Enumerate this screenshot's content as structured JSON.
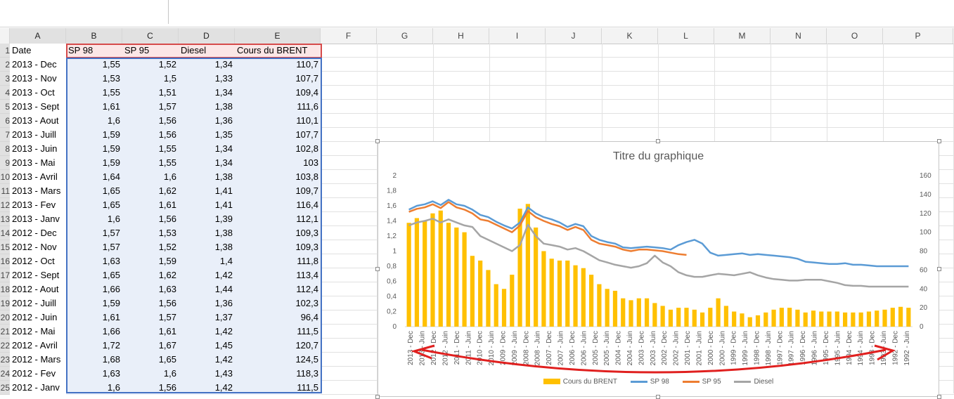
{
  "columns": [
    "A",
    "B",
    "C",
    "D",
    "E",
    "F",
    "G",
    "H",
    "I",
    "J",
    "K",
    "L",
    "M",
    "N",
    "O",
    "P"
  ],
  "headers": {
    "date": "Date",
    "sp98": "SP 98",
    "sp95": "SP 95",
    "diesel": "Diesel",
    "brent": "Cours du BRENT"
  },
  "rows": [
    {
      "n": "2",
      "date": "2013 - Dec",
      "sp98": "1,55",
      "sp95": "1,52",
      "diesel": "1,34",
      "brent": "110,7"
    },
    {
      "n": "3",
      "date": "2013 - Nov",
      "sp98": "1,53",
      "sp95": "1,5",
      "diesel": "1,33",
      "brent": "107,7"
    },
    {
      "n": "4",
      "date": "2013 - Oct",
      "sp98": "1,55",
      "sp95": "1,51",
      "diesel": "1,34",
      "brent": "109,4"
    },
    {
      "n": "5",
      "date": "2013 - Sept",
      "sp98": "1,61",
      "sp95": "1,57",
      "diesel": "1,38",
      "brent": "111,6"
    },
    {
      "n": "6",
      "date": "2013 - Aout",
      "sp98": "1,6",
      "sp95": "1,56",
      "diesel": "1,36",
      "brent": "110,1"
    },
    {
      "n": "7",
      "date": "2013 - Juill",
      "sp98": "1,59",
      "sp95": "1,56",
      "diesel": "1,35",
      "brent": "107,7"
    },
    {
      "n": "8",
      "date": "2013 - Juin",
      "sp98": "1,59",
      "sp95": "1,55",
      "diesel": "1,34",
      "brent": "102,8"
    },
    {
      "n": "9",
      "date": "2013 - Mai",
      "sp98": "1,59",
      "sp95": "1,55",
      "diesel": "1,34",
      "brent": "103"
    },
    {
      "n": "10",
      "date": "2013 - Avril",
      "sp98": "1,64",
      "sp95": "1,6",
      "diesel": "1,38",
      "brent": "103,8"
    },
    {
      "n": "11",
      "date": "2013 - Mars",
      "sp98": "1,65",
      "sp95": "1,62",
      "diesel": "1,41",
      "brent": "109,7"
    },
    {
      "n": "12",
      "date": "2013 - Fev",
      "sp98": "1,65",
      "sp95": "1,61",
      "diesel": "1,41",
      "brent": "116,4"
    },
    {
      "n": "13",
      "date": "2013 - Janv",
      "sp98": "1,6",
      "sp95": "1,56",
      "diesel": "1,39",
      "brent": "112,1"
    },
    {
      "n": "14",
      "date": "2012 - Dec",
      "sp98": "1,57",
      "sp95": "1,53",
      "diesel": "1,38",
      "brent": "109,3"
    },
    {
      "n": "15",
      "date": "2012 - Nov",
      "sp98": "1,57",
      "sp95": "1,52",
      "diesel": "1,38",
      "brent": "109,3"
    },
    {
      "n": "16",
      "date": "2012 - Oct",
      "sp98": "1,63",
      "sp95": "1,59",
      "diesel": "1,4",
      "brent": "111,8"
    },
    {
      "n": "17",
      "date": "2012 - Sept",
      "sp98": "1,65",
      "sp95": "1,62",
      "diesel": "1,42",
      "brent": "113,4"
    },
    {
      "n": "18",
      "date": "2012 - Aout",
      "sp98": "1,66",
      "sp95": "1,63",
      "diesel": "1,44",
      "brent": "112,4"
    },
    {
      "n": "19",
      "date": "2012 - Juill",
      "sp98": "1,59",
      "sp95": "1,56",
      "diesel": "1,36",
      "brent": "102,3"
    },
    {
      "n": "20",
      "date": "2012 - Juin",
      "sp98": "1,61",
      "sp95": "1,57",
      "diesel": "1,37",
      "brent": "96,4"
    },
    {
      "n": "21",
      "date": "2012 - Mai",
      "sp98": "1,66",
      "sp95": "1,61",
      "diesel": "1,42",
      "brent": "111,5"
    },
    {
      "n": "22",
      "date": "2012 - Avril",
      "sp98": "1,72",
      "sp95": "1,67",
      "diesel": "1,45",
      "brent": "120,7"
    },
    {
      "n": "23",
      "date": "2012 - Mars",
      "sp98": "1,68",
      "sp95": "1,65",
      "diesel": "1,42",
      "brent": "124,5"
    },
    {
      "n": "24",
      "date": "2012 - Fev",
      "sp98": "1,63",
      "sp95": "1,6",
      "diesel": "1,43",
      "brent": "118,3"
    },
    {
      "n": "25",
      "date": "2012 - Janv",
      "sp98": "1,6",
      "sp95": "1,56",
      "diesel": "1,42",
      "brent": "111,5"
    }
  ],
  "colors": {
    "sp98": "#5b9bd5",
    "sp95": "#ed7d31",
    "diesel": "#a5a5a5",
    "brent": "#ffc000",
    "annotation": "#e0201f"
  },
  "chart_data": {
    "type": "bar+line",
    "title": "Titre du graphique",
    "left_axis": {
      "ylim": [
        0,
        2
      ],
      "ticks": [
        "0",
        "0,2",
        "0,4",
        "0,6",
        "0,8",
        "1",
        "1,2",
        "1,4",
        "1,6",
        "1,8",
        "2"
      ]
    },
    "right_axis": {
      "ylim": [
        0,
        160
      ],
      "ticks": [
        "0",
        "20",
        "40",
        "60",
        "80",
        "100",
        "120",
        "140",
        "160"
      ]
    },
    "x_tick_labels": [
      "2013 - Dec",
      "2013 - Juin",
      "2012 - Dec",
      "2012 - Juin",
      "2011 - Dec",
      "2011 - Juin",
      "2010 - Dec",
      "2010 - Juin",
      "2009 - Dec",
      "2009 - Juin",
      "2008 - Dec",
      "2008 - Juin",
      "2007 - Dec",
      "2007 - Juin",
      "2006 - Dec",
      "2006 - Juin",
      "2005 - Dec",
      "2005 - Juin",
      "2004 - Dec",
      "2004 - Juin",
      "2003 - Dec",
      "2003 - Juin",
      "2002 - Dec",
      "2002 - Juin",
      "2001 - Dec",
      "2001 - Juin",
      "2000 - Dec",
      "2000 - Juin",
      "1999 - Dec",
      "1999 - Juin",
      "1998 - Dec",
      "1998 - Juin",
      "1997 - Dec",
      "1997 - Juin",
      "1996 - Dec",
      "1996 - Juin",
      "1995 - Dec",
      "1995 - Juin",
      "1994 - Dec",
      "1994 - Juin",
      "1993 - Dec",
      "1993 - Juin",
      "1992 - Dec",
      "1992 - Juin"
    ],
    "legend": [
      "Cours du BRENT",
      "SP 98",
      "SP 95",
      "Diesel"
    ],
    "series": [
      {
        "name": "Cours du BRENT",
        "axis": "right",
        "kind": "bar",
        "values": [
          110,
          115,
          112,
          120,
          123,
          110,
          105,
          100,
          75,
          70,
          60,
          45,
          40,
          55,
          125,
          130,
          105,
          80,
          72,
          70,
          70,
          65,
          62,
          55,
          45,
          40,
          38,
          30,
          28,
          30,
          30,
          25,
          22,
          18,
          20,
          20,
          18,
          15,
          20,
          30,
          22,
          16,
          14,
          10,
          12,
          15,
          18,
          20,
          20,
          18,
          15,
          17,
          16,
          16,
          16,
          15,
          15,
          15,
          16,
          17,
          18,
          20,
          21,
          20
        ]
      },
      {
        "name": "SP 98",
        "axis": "left",
        "kind": "line",
        "values": [
          1.55,
          1.6,
          1.62,
          1.66,
          1.61,
          1.68,
          1.62,
          1.6,
          1.55,
          1.48,
          1.45,
          1.39,
          1.34,
          1.3,
          1.38,
          1.58,
          1.5,
          1.45,
          1.42,
          1.38,
          1.32,
          1.36,
          1.33,
          1.2,
          1.15,
          1.12,
          1.1,
          1.05,
          1.04,
          1.05,
          1.06,
          1.05,
          1.04,
          1.02,
          1.08,
          1.12,
          1.15,
          1.1,
          0.98,
          0.94,
          0.95,
          0.96,
          0.97,
          0.95,
          0.96,
          0.95,
          0.94,
          0.93,
          0.92,
          0.9,
          0.86,
          0.85,
          0.84,
          0.83,
          0.83,
          0.84,
          0.82,
          0.82,
          0.81,
          0.8,
          0.8,
          0.8,
          0.8,
          0.8
        ]
      },
      {
        "name": "SP 95",
        "axis": "left",
        "kind": "line",
        "values": [
          1.52,
          1.56,
          1.58,
          1.62,
          1.57,
          1.65,
          1.58,
          1.55,
          1.5,
          1.42,
          1.4,
          1.35,
          1.3,
          1.25,
          1.34,
          1.53,
          1.45,
          1.4,
          1.36,
          1.33,
          1.28,
          1.32,
          1.28,
          1.15,
          1.1,
          1.08,
          1.06,
          1.02,
          1.0,
          1.02,
          1.02,
          1.01,
          1.0,
          0.98,
          0.96,
          0.95
        ]
      },
      {
        "name": "Diesel",
        "axis": "left",
        "kind": "line",
        "values": [
          1.34,
          1.38,
          1.4,
          1.43,
          1.38,
          1.42,
          1.38,
          1.34,
          1.32,
          1.2,
          1.15,
          1.1,
          1.05,
          1.0,
          1.08,
          1.35,
          1.2,
          1.1,
          1.08,
          1.06,
          1.02,
          1.04,
          1.0,
          0.94,
          0.88,
          0.85,
          0.82,
          0.8,
          0.78,
          0.8,
          0.84,
          0.94,
          0.85,
          0.8,
          0.72,
          0.68,
          0.66,
          0.66,
          0.68,
          0.7,
          0.69,
          0.68,
          0.7,
          0.72,
          0.68,
          0.65,
          0.63,
          0.62,
          0.61,
          0.61,
          0.62,
          0.62,
          0.62,
          0.6,
          0.58,
          0.55,
          0.54,
          0.54,
          0.53,
          0.53,
          0.53,
          0.53,
          0.53,
          0.53
        ]
      }
    ]
  }
}
